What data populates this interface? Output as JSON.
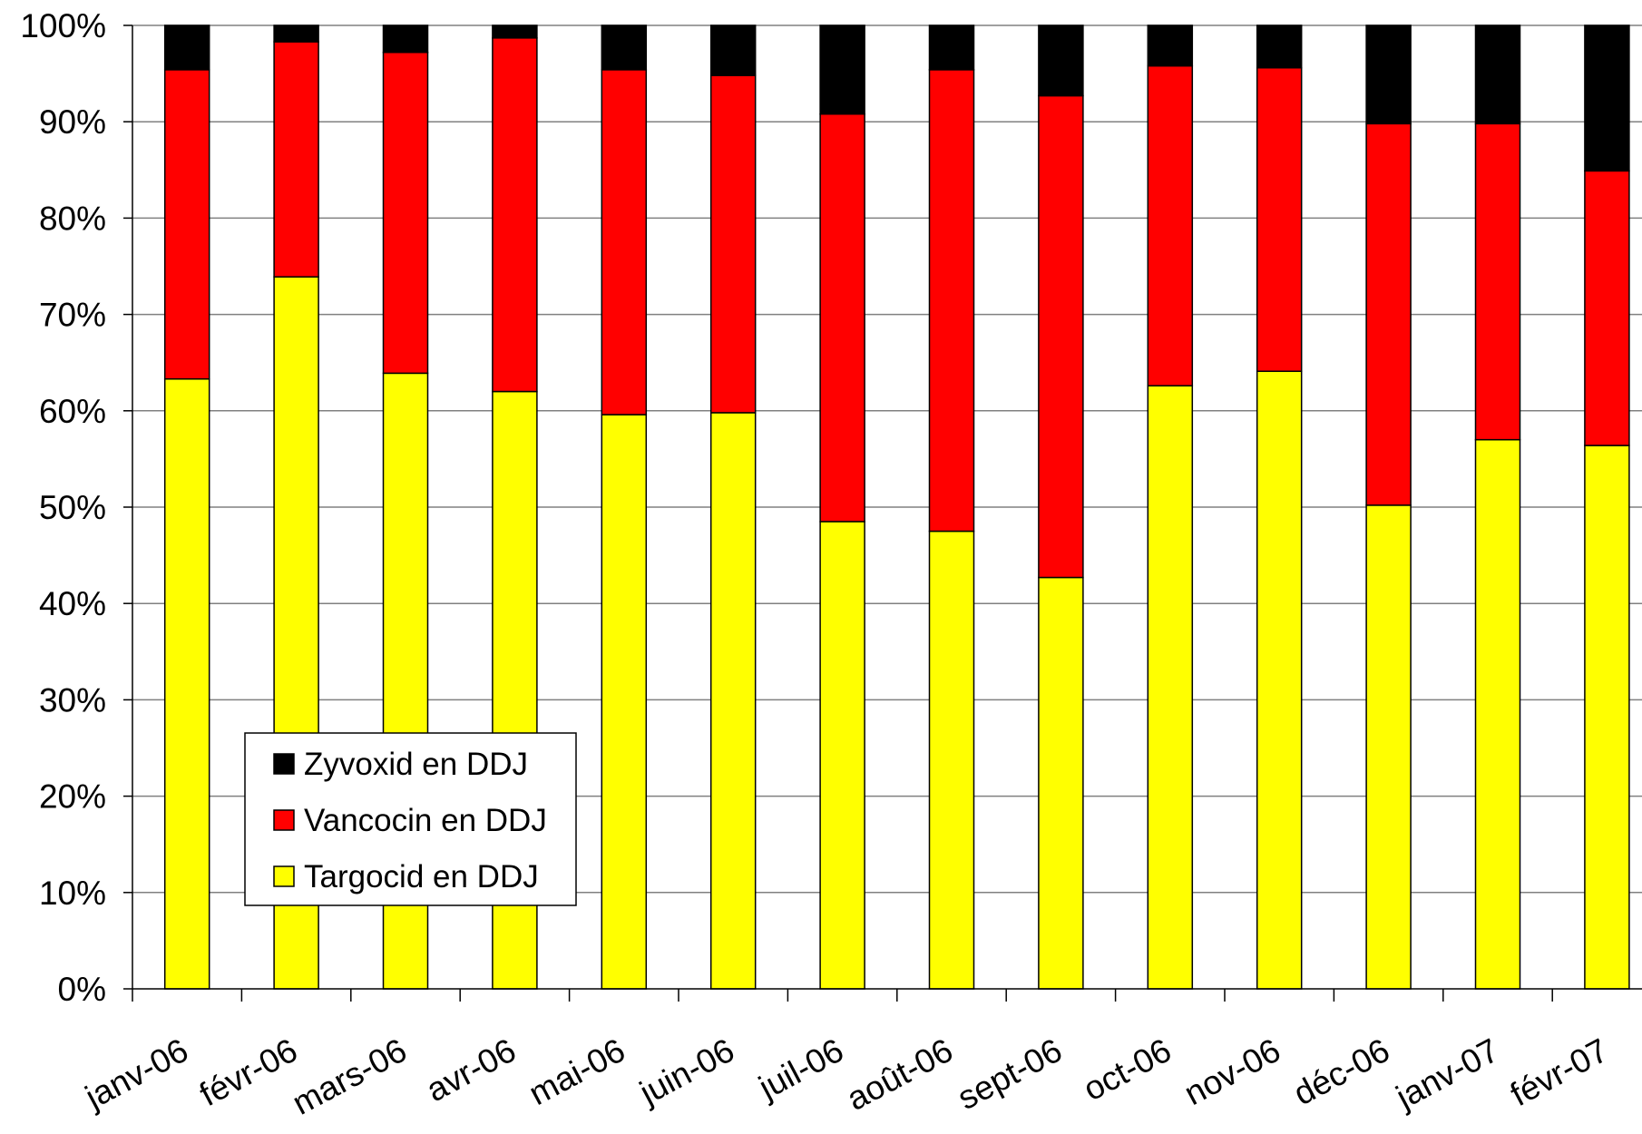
{
  "chart_data": {
    "type": "bar",
    "stacked": true,
    "percent_stacked": true,
    "categories": [
      "janv-06",
      "févr-06",
      "mars-06",
      "avr-06",
      "mai-06",
      "juin-06",
      "juil-06",
      "août-06",
      "sept-06",
      "oct-06",
      "nov-06",
      "déc-06",
      "janv-07",
      "févr-07"
    ],
    "series": [
      {
        "name": "Targocid en DDJ",
        "color": "#ffff00",
        "values": [
          63.3,
          73.9,
          63.9,
          62.0,
          59.6,
          59.8,
          48.5,
          47.5,
          42.7,
          62.6,
          64.1,
          50.2,
          57.0,
          56.4
        ]
      },
      {
        "name": "Vancocin en DDJ",
        "color": "#ff0000",
        "values": [
          32.1,
          24.4,
          33.3,
          36.7,
          35.8,
          35.0,
          42.3,
          47.9,
          50.0,
          33.2,
          31.5,
          39.6,
          32.8,
          28.5
        ]
      },
      {
        "name": "Zyvoxid en DDJ",
        "color": "#000000",
        "values": [
          4.6,
          1.7,
          2.8,
          1.3,
          4.6,
          5.2,
          9.2,
          4.6,
          7.3,
          4.2,
          4.4,
          10.2,
          10.2,
          15.1
        ]
      }
    ],
    "y_ticks": [
      "0%",
      "10%",
      "20%",
      "30%",
      "40%",
      "50%",
      "60%",
      "70%",
      "80%",
      "90%",
      "100%"
    ],
    "ylim": [
      0,
      100
    ],
    "grid": true,
    "legend": {
      "placement": "lower-left inside plot",
      "order": [
        "Zyvoxid en DDJ",
        "Vancocin en DDJ",
        "Targocid en DDJ"
      ]
    },
    "title": "",
    "xlabel": "",
    "ylabel": ""
  }
}
